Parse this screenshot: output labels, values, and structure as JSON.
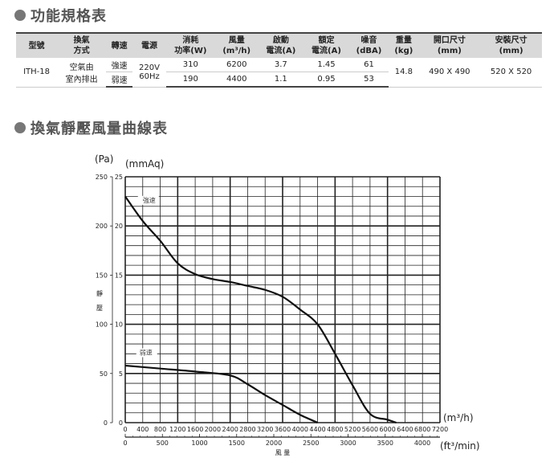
{
  "spec_section": {
    "title": "功能規格表",
    "headers": [
      "型號",
      "換氣\n方式",
      "轉速",
      "電源",
      "消耗\n功率(W)",
      "風量\n(m³/h)",
      "啟動\n電流(A)",
      "額定\n電流(A)",
      "噪音\n(dBA)",
      "重量\n(kg)",
      "開口尺寸\n(mm)",
      "安裝尺寸\n(mm)"
    ],
    "model": "ITH-18",
    "method": "空氣由\n室內排出",
    "power_supply": "220V\n60Hz",
    "weight": "14.8",
    "opening_size": "490 X 490",
    "install_size": "520 X 520",
    "rows": [
      {
        "speed": "強速",
        "power_w": "310",
        "airflow": "6200",
        "start_current": "3.7",
        "rated_current": "1.45",
        "noise": "61"
      },
      {
        "speed": "弱速",
        "power_w": "190",
        "airflow": "4400",
        "start_current": "1.1",
        "rated_current": "0.95",
        "noise": "53"
      }
    ]
  },
  "chart_section": {
    "title": "換氣靜壓風量曲線表"
  },
  "chart_data": {
    "type": "line",
    "title": "",
    "xlabel": "風 量",
    "ylabel": "靜 壓",
    "x_unit_primary": "(m³/h)",
    "x_unit_secondary": "(ft³/min)",
    "y_unit_outer": "(Pa)",
    "y_unit_inner": "(mmAq)",
    "xlim": [
      0,
      7200
    ],
    "ylim_mmaq": [
      0,
      25
    ],
    "ylim_pa": [
      0,
      250
    ],
    "x_ticks": [
      0,
      400,
      800,
      1200,
      1600,
      2000,
      2400,
      2800,
      3200,
      3600,
      4000,
      4400,
      4800,
      5200,
      5600,
      6000,
      6400,
      6800,
      7200
    ],
    "x_ticks_cfm": [
      0,
      500,
      1000,
      1500,
      2000,
      2500,
      3000,
      3500,
      4000
    ],
    "y_ticks_mmaq": [
      0,
      5,
      10,
      15,
      20,
      25
    ],
    "y_ticks_pa": [
      0,
      50,
      100,
      150,
      200,
      250
    ],
    "grid": true,
    "series": [
      {
        "name": "強速",
        "color": "#111111",
        "x": [
          0,
          400,
          800,
          1200,
          1600,
          2000,
          2400,
          2800,
          3200,
          3600,
          4000,
          4400,
          4800,
          5200,
          5600,
          6000,
          6200
        ],
        "y": [
          23,
          20.5,
          18.5,
          16.2,
          15.1,
          14.6,
          14.3,
          13.9,
          13.5,
          12.8,
          11.5,
          10.0,
          7.0,
          3.8,
          0.9,
          0.3,
          0
        ]
      },
      {
        "name": "弱速",
        "color": "#111111",
        "x": [
          0,
          800,
          1600,
          2400,
          2800,
          3200,
          3600,
          4000,
          4400
        ],
        "y": [
          5.8,
          5.5,
          5.2,
          4.8,
          3.9,
          2.8,
          1.8,
          0.8,
          0
        ]
      }
    ]
  }
}
